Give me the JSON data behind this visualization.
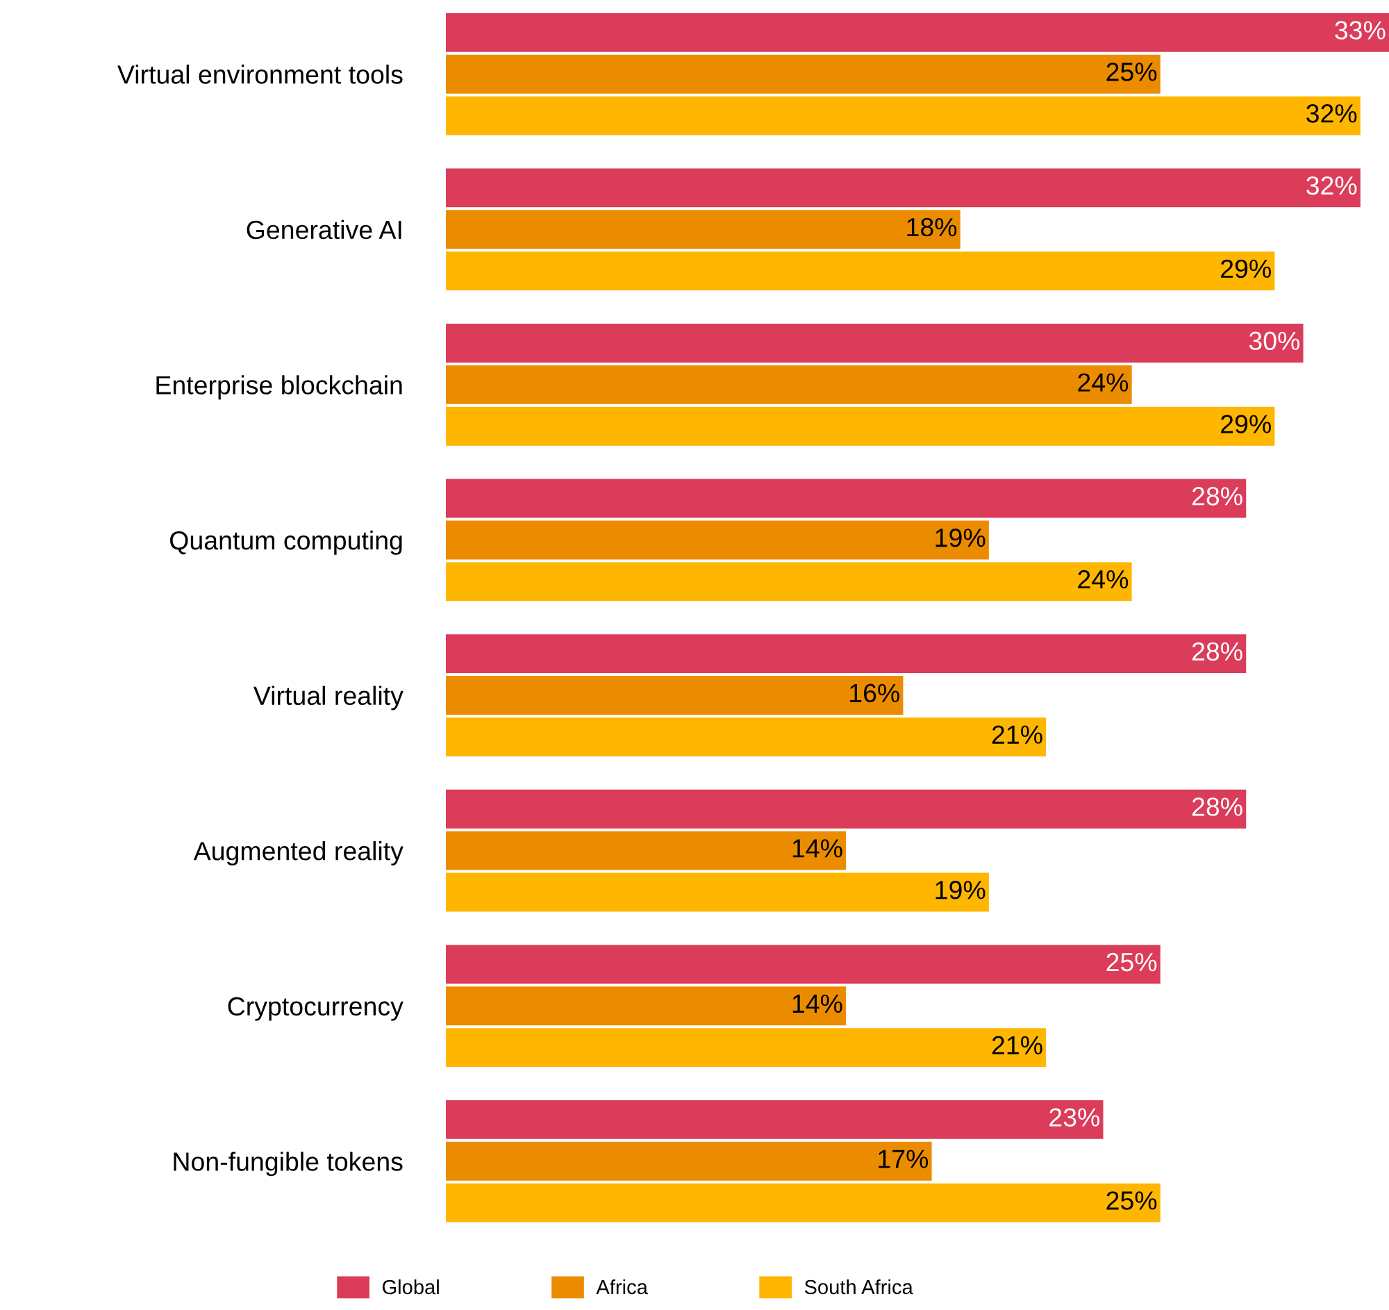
{
  "chart_data": {
    "type": "bar",
    "orientation": "horizontal",
    "categories": [
      "Virtual environment tools",
      "Generative AI",
      "Enterprise blockchain",
      "Quantum computing",
      "Virtual reality",
      "Augmented reality",
      "Cryptocurrency",
      "Non-fungible tokens"
    ],
    "series": [
      {
        "name": "Global",
        "color": "#db3c5a",
        "values": [
          33,
          32,
          30,
          28,
          28,
          28,
          25,
          23
        ],
        "value_labels": [
          "33%",
          "32%",
          "30%",
          "28%",
          "28%",
          "28%",
          "25%",
          "23%"
        ]
      },
      {
        "name": "Africa",
        "color": "#eb8c00",
        "values": [
          25,
          18,
          24,
          19,
          16,
          14,
          14,
          17
        ],
        "value_labels": [
          "25%",
          "18%",
          "24%",
          "19%",
          "16%",
          "14%",
          "14%",
          "17%"
        ]
      },
      {
        "name": "South Africa",
        "color": "#ffb600",
        "values": [
          32,
          29,
          29,
          24,
          21,
          19,
          21,
          25
        ],
        "value_labels": [
          "32%",
          "29%",
          "29%",
          "24%",
          "21%",
          "19%",
          "21%",
          "25%"
        ]
      }
    ],
    "xlim": [
      0,
      33
    ],
    "tick_labels": "y",
    "grid": false,
    "legend": "bottom"
  }
}
